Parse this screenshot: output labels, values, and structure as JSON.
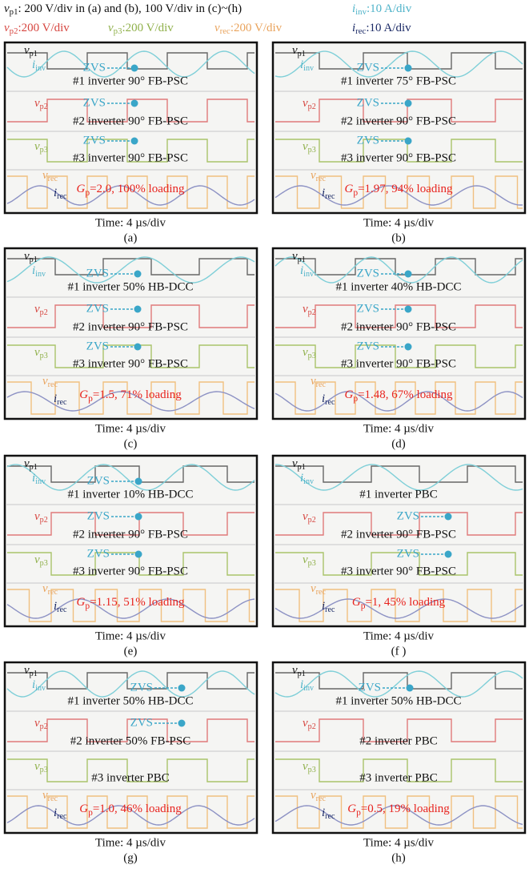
{
  "header": {
    "lines": [
      {
        "items": [
          {
            "sym": "v",
            "sub": "p1",
            "text": ": 200 V/div in (a) and (b), 100 V/div in (c)~(h)"
          },
          {
            "sym": "i",
            "sub": "inv",
            "text": ":10 A/div"
          }
        ]
      },
      {
        "items": [
          {
            "sym": "v",
            "sub": "p2",
            "text": ":200 V/div"
          },
          {
            "sym": "v",
            "sub": "p3",
            "text": ":200 V/div"
          },
          {
            "sym": "v",
            "sub": "rec",
            "text": ":200 V/div"
          },
          {
            "sym": "i",
            "sub": "rec",
            "text": ":10 A/div"
          }
        ]
      }
    ]
  },
  "panels": [
    {
      "inverters": [
        {
          "text": "#1 inverter 90° FB-PSC",
          "zvs": "ZVS"
        },
        {
          "text": "#2 inverter 90° FB-PSC",
          "zvs": "ZVS"
        },
        {
          "text": "#3 inverter 90° FB-PSC",
          "zvs": "ZVS"
        }
      ],
      "trace_labels": [
        {
          "sym": "v",
          "sub": "p1"
        },
        {
          "sym": "i",
          "sub": "inv"
        },
        {
          "sym": "v",
          "sub": "p2"
        },
        {
          "sym": "v",
          "sub": "p3"
        },
        {
          "sym": "v",
          "sub": "rec"
        },
        {
          "sym": "i",
          "sub": "rec"
        }
      ],
      "gain": {
        "sym": "G",
        "sub": "p",
        "text": "=2.0, 100% loading"
      },
      "time": "Time: 4 µs/div",
      "label": "(a)"
    },
    {
      "inverters": [
        {
          "text": "#1 inverter 75° FB-PSC",
          "zvs": "ZVS"
        },
        {
          "text": "#2 inverter 90° FB-PSC",
          "zvs": "ZVS"
        },
        {
          "text": "#3 inverter 90° FB-PSC",
          "zvs": "ZVS"
        }
      ],
      "trace_labels": [
        {
          "sym": "v",
          "sub": "p1"
        },
        {
          "sym": "i",
          "sub": "inv"
        },
        {
          "sym": "v",
          "sub": "p2"
        },
        {
          "sym": "v",
          "sub": "p3"
        },
        {
          "sym": "v",
          "sub": "rec"
        },
        {
          "sym": "i",
          "sub": "rec"
        }
      ],
      "gain": {
        "sym": "G",
        "sub": "p",
        "text": "=1.97, 94% loading"
      },
      "time": "Time: 4 µs/div",
      "label": "(b)"
    },
    {
      "inverters": [
        {
          "text": "#1 inverter 50% HB-DCC",
          "zvs": "ZVS"
        },
        {
          "text": "#2 inverter 90° FB-PSC",
          "zvs": "ZVS"
        },
        {
          "text": "#3 inverter 90° FB-PSC",
          "zvs": "ZVS"
        }
      ],
      "trace_labels": [
        {
          "sym": "v",
          "sub": "p1"
        },
        {
          "sym": "i",
          "sub": "inv"
        },
        {
          "sym": "v",
          "sub": "p2"
        },
        {
          "sym": "v",
          "sub": "p3"
        },
        {
          "sym": "v",
          "sub": "rec"
        },
        {
          "sym": "i",
          "sub": "rec"
        }
      ],
      "gain": {
        "sym": "G",
        "sub": "p",
        "text": "=1.5, 71% loading"
      },
      "time": "Time: 4 µs/div",
      "label": "(c)"
    },
    {
      "inverters": [
        {
          "text": "#1 inverter 40% HB-DCC",
          "zvs": "ZVS"
        },
        {
          "text": "#2 inverter 90° FB-PSC",
          "zvs": "ZVS"
        },
        {
          "text": "#3 inverter 90° FB-PSC",
          "zvs": "ZVS"
        }
      ],
      "trace_labels": [
        {
          "sym": "v",
          "sub": "p1"
        },
        {
          "sym": "i",
          "sub": "inv"
        },
        {
          "sym": "v",
          "sub": "p2"
        },
        {
          "sym": "v",
          "sub": "p3"
        },
        {
          "sym": "v",
          "sub": "rec"
        },
        {
          "sym": "i",
          "sub": "rec"
        }
      ],
      "gain": {
        "sym": "G",
        "sub": "p",
        "text": "=1.48, 67% loading"
      },
      "time": "Time: 4 µs/div",
      "label": "(d)"
    },
    {
      "inverters": [
        {
          "text": "#1 inverter 10% HB-DCC",
          "zvs": "ZVS"
        },
        {
          "text": "#2 inverter 90° FB-PSC",
          "zvs": "ZVS"
        },
        {
          "text": "#3 inverter 90° FB-PSC",
          "zvs": "ZVS"
        }
      ],
      "trace_labels": [
        {
          "sym": "v",
          "sub": "p1"
        },
        {
          "sym": "i",
          "sub": "inv"
        },
        {
          "sym": "v",
          "sub": "p2"
        },
        {
          "sym": "v",
          "sub": "p3"
        },
        {
          "sym": "v",
          "sub": "rec"
        },
        {
          "sym": "i",
          "sub": "rec"
        }
      ],
      "gain": {
        "sym": "G",
        "sub": "p",
        "text": "=1.15, 51% loading"
      },
      "time": "Time: 4 µs/div",
      "label": "(e)"
    },
    {
      "inverters": [
        {
          "text": "#1 inverter PBC"
        },
        {
          "text": "#2 inverter 90° FB-PSC",
          "zvs": "ZVS"
        },
        {
          "text": "#3 inverter 90° FB-PSC",
          "zvs": "ZVS"
        }
      ],
      "trace_labels": [
        {
          "sym": "v",
          "sub": "p1"
        },
        {
          "sym": "i",
          "sub": "inv"
        },
        {
          "sym": "v",
          "sub": "p2"
        },
        {
          "sym": "v",
          "sub": "p3"
        },
        {
          "sym": "v",
          "sub": "rec"
        },
        {
          "sym": "i",
          "sub": "rec"
        }
      ],
      "gain": {
        "sym": "G",
        "sub": "p",
        "text": "=1, 45% loading"
      },
      "time": "Time: 4 µs/div",
      "label": "(f )"
    },
    {
      "inverters": [
        {
          "text": "#1 inverter 50% HB-DCC",
          "zvs": "ZVS"
        },
        {
          "text": "#2 inverter 50% FB-PSC",
          "zvs": "ZVS"
        },
        {
          "text": "#3 inverter PBC"
        }
      ],
      "trace_labels": [
        {
          "sym": "v",
          "sub": "p1"
        },
        {
          "sym": "i",
          "sub": "inv"
        },
        {
          "sym": "v",
          "sub": "p2"
        },
        {
          "sym": "v",
          "sub": "p3"
        },
        {
          "sym": "v",
          "sub": "rec"
        },
        {
          "sym": "i",
          "sub": "rec"
        }
      ],
      "gain": {
        "sym": "G",
        "sub": "p",
        "text": "=1.0, 46% loading"
      },
      "time": "Time: 4 µs/div",
      "label": "(g)"
    },
    {
      "inverters": [
        {
          "text": "#1 inverter 50% HB-DCC",
          "zvs": "ZVS"
        },
        {
          "text": "#2 inverter PBC"
        },
        {
          "text": "#3 inverter PBC"
        }
      ],
      "trace_labels": [
        {
          "sym": "v",
          "sub": "p1"
        },
        {
          "sym": "i",
          "sub": "inv"
        },
        {
          "sym": "v",
          "sub": "p2"
        },
        {
          "sym": "v",
          "sub": "p3"
        },
        {
          "sym": "v",
          "sub": "rec"
        },
        {
          "sym": "i",
          "sub": "rec"
        }
      ],
      "gain": {
        "sym": "G",
        "sub": "p",
        "text": "=0.5, 19% loading"
      },
      "time": "Time: 4 µs/div",
      "label": "(h)"
    }
  ]
}
